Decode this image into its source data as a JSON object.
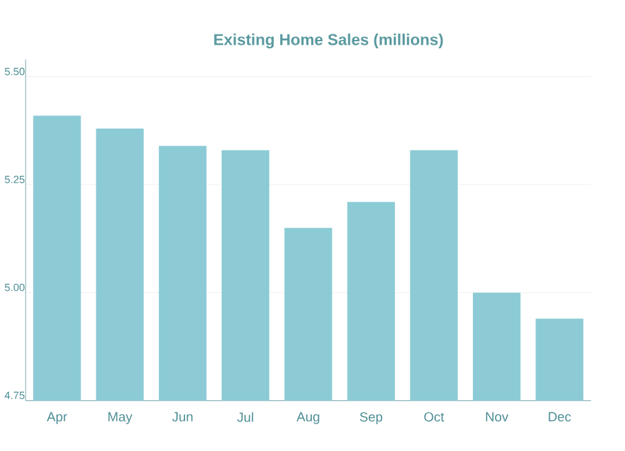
{
  "chart_data": {
    "type": "bar",
    "title": "Existing Home Sales (millions)",
    "categories": [
      "Apr",
      "May",
      "Jun",
      "Jul",
      "Aug",
      "Sep",
      "Oct",
      "Nov",
      "Dec"
    ],
    "values": [
      5.41,
      5.38,
      5.34,
      5.33,
      5.15,
      5.21,
      5.33,
      5.0,
      4.94
    ],
    "color": "#8ccbd6",
    "ylim": [
      4.75,
      5.54
    ],
    "yticks": [
      {
        "value": 4.75,
        "label": "4.75"
      },
      {
        "value": 5.0,
        "label": "5.00"
      },
      {
        "value": 5.25,
        "label": "5.25"
      },
      {
        "value": 5.5,
        "label": "5.50"
      }
    ],
    "grid": "y"
  }
}
